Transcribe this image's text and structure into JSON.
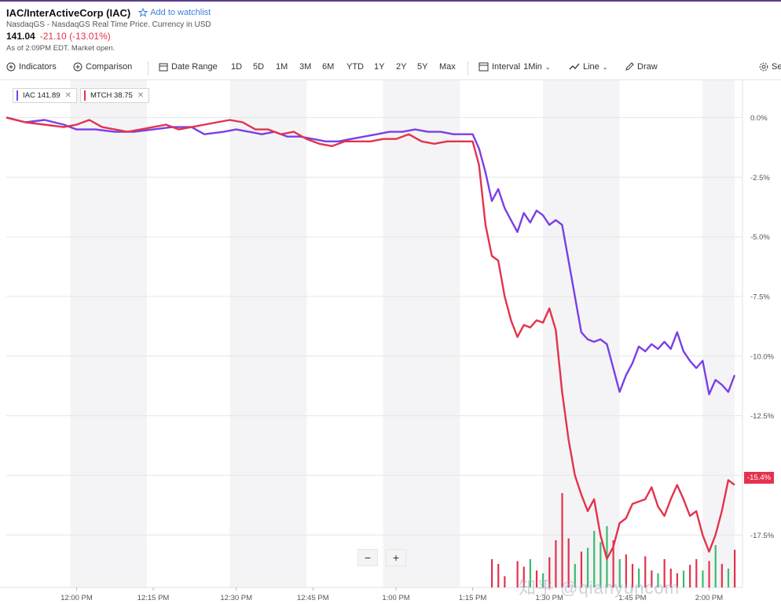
{
  "header": {
    "title": "IAC/InterActiveCorp (IAC)",
    "watchlist_label": "Add to watchlist",
    "source": "NasdaqGS - NasdaqGS Real Time Price. Currency in USD",
    "price": "141.04",
    "change": "-21.10 (-13.01%)",
    "as_of": "As of 2:09PM EDT. Market open."
  },
  "toolbar": {
    "indicators": "Indicators",
    "comparison": "Comparison",
    "date_range": "Date Range",
    "ranges": [
      "1D",
      "5D",
      "1M",
      "3M",
      "6M",
      "YTD",
      "1Y",
      "2Y",
      "5Y",
      "Max"
    ],
    "interval_label": "Interval",
    "interval_value": "1Min",
    "chart_type": "Line",
    "draw": "Draw",
    "settings": "Se"
  },
  "chips": [
    {
      "label": "IAC 141.89",
      "color": "#7b3fe4"
    },
    {
      "label": "MTCH 38.75",
      "color": "#e3334d"
    }
  ],
  "zoom": {
    "minus": "−",
    "plus": "+"
  },
  "last_value_flag": "-15.4%",
  "watermark": "知乎 @qianyuncom",
  "chart_data": {
    "type": "line",
    "y_unit": "%",
    "ylim": [
      -19.7,
      1.3
    ],
    "yticks": [
      0,
      -2.5,
      -5,
      -7.5,
      -10,
      -12.5,
      -15,
      -17.5
    ],
    "ytick_labels": [
      "0.0%",
      "-2.5%",
      "-5.0%",
      "-7.5%",
      "-10.0%",
      "-12.5%",
      "-15.0%",
      "-17.5%"
    ],
    "xlim": [
      0,
      114
    ],
    "xticks": [
      11,
      23,
      36,
      48,
      61,
      73,
      85,
      98,
      110
    ],
    "xtick_labels": [
      "12:00 PM",
      "12:15 PM",
      "12:30 PM",
      "12:45 PM",
      "1:00 PM",
      "1:15 PM",
      "1:30 PM",
      "1:45 PM",
      "2:00 PM"
    ],
    "x_note": "minutes after 11:51 AM",
    "shaded_bands": [
      [
        10,
        22
      ],
      [
        35,
        47
      ],
      [
        59,
        71
      ],
      [
        84,
        96
      ],
      [
        109,
        114
      ]
    ],
    "series": [
      {
        "name": "IAC",
        "color": "#7b3fe4",
        "points": [
          [
            0,
            0
          ],
          [
            3,
            -0.2
          ],
          [
            6,
            -0.1
          ],
          [
            9,
            -0.3
          ],
          [
            11,
            -0.5
          ],
          [
            14,
            -0.5
          ],
          [
            17,
            -0.6
          ],
          [
            20,
            -0.6
          ],
          [
            23,
            -0.5
          ],
          [
            26,
            -0.4
          ],
          [
            29,
            -0.4
          ],
          [
            31,
            -0.7
          ],
          [
            34,
            -0.6
          ],
          [
            36,
            -0.5
          ],
          [
            38,
            -0.6
          ],
          [
            40,
            -0.7
          ],
          [
            42,
            -0.6
          ],
          [
            44,
            -0.8
          ],
          [
            46,
            -0.8
          ],
          [
            48,
            -0.9
          ],
          [
            50,
            -1.0
          ],
          [
            52,
            -1.0
          ],
          [
            54,
            -0.9
          ],
          [
            56,
            -0.8
          ],
          [
            58,
            -0.7
          ],
          [
            60,
            -0.6
          ],
          [
            62,
            -0.6
          ],
          [
            64,
            -0.5
          ],
          [
            66,
            -0.6
          ],
          [
            68,
            -0.6
          ],
          [
            70,
            -0.7
          ],
          [
            72,
            -0.7
          ],
          [
            73,
            -0.7
          ],
          [
            74,
            -1.3
          ],
          [
            75,
            -2.3
          ],
          [
            76,
            -3.5
          ],
          [
            77,
            -3.0
          ],
          [
            78,
            -3.8
          ],
          [
            79,
            -4.3
          ],
          [
            80,
            -4.8
          ],
          [
            81,
            -4.0
          ],
          [
            82,
            -4.4
          ],
          [
            83,
            -3.9
          ],
          [
            84,
            -4.1
          ],
          [
            85,
            -4.5
          ],
          [
            86,
            -4.3
          ],
          [
            87,
            -4.5
          ],
          [
            88,
            -6.0
          ],
          [
            89,
            -7.5
          ],
          [
            90,
            -9.0
          ],
          [
            91,
            -9.3
          ],
          [
            92,
            -9.4
          ],
          [
            93,
            -9.3
          ],
          [
            94,
            -9.5
          ],
          [
            95,
            -10.5
          ],
          [
            96,
            -11.5
          ],
          [
            97,
            -10.8
          ],
          [
            98,
            -10.3
          ],
          [
            99,
            -9.6
          ],
          [
            100,
            -9.8
          ],
          [
            101,
            -9.5
          ],
          [
            102,
            -9.7
          ],
          [
            103,
            -9.4
          ],
          [
            104,
            -9.7
          ],
          [
            105,
            -9.0
          ],
          [
            106,
            -9.8
          ],
          [
            107,
            -10.2
          ],
          [
            108,
            -10.5
          ],
          [
            109,
            -10.2
          ],
          [
            110,
            -11.6
          ],
          [
            111,
            -11.0
          ],
          [
            112,
            -11.2
          ],
          [
            113,
            -11.5
          ],
          [
            114,
            -10.8
          ]
        ]
      },
      {
        "name": "MTCH",
        "color": "#e3334d",
        "points": [
          [
            0,
            0
          ],
          [
            3,
            -0.2
          ],
          [
            6,
            -0.3
          ],
          [
            9,
            -0.4
          ],
          [
            11,
            -0.3
          ],
          [
            13,
            -0.1
          ],
          [
            15,
            -0.4
          ],
          [
            17,
            -0.5
          ],
          [
            19,
            -0.6
          ],
          [
            21,
            -0.5
          ],
          [
            23,
            -0.4
          ],
          [
            25,
            -0.3
          ],
          [
            27,
            -0.5
          ],
          [
            29,
            -0.4
          ],
          [
            31,
            -0.3
          ],
          [
            33,
            -0.2
          ],
          [
            35,
            -0.1
          ],
          [
            37,
            -0.2
          ],
          [
            39,
            -0.5
          ],
          [
            41,
            -0.5
          ],
          [
            43,
            -0.7
          ],
          [
            45,
            -0.6
          ],
          [
            47,
            -0.9
          ],
          [
            49,
            -1.1
          ],
          [
            51,
            -1.2
          ],
          [
            53,
            -1.0
          ],
          [
            55,
            -1.0
          ],
          [
            57,
            -1.0
          ],
          [
            59,
            -0.9
          ],
          [
            61,
            -0.9
          ],
          [
            63,
            -0.7
          ],
          [
            65,
            -1.0
          ],
          [
            67,
            -1.1
          ],
          [
            69,
            -1.0
          ],
          [
            71,
            -1.0
          ],
          [
            73,
            -1.0
          ],
          [
            74,
            -2.0
          ],
          [
            75,
            -4.5
          ],
          [
            76,
            -5.8
          ],
          [
            77,
            -6.0
          ],
          [
            78,
            -7.5
          ],
          [
            79,
            -8.5
          ],
          [
            80,
            -9.2
          ],
          [
            81,
            -8.7
          ],
          [
            82,
            -8.8
          ],
          [
            83,
            -8.5
          ],
          [
            84,
            -8.6
          ],
          [
            85,
            -8.0
          ],
          [
            86,
            -8.9
          ],
          [
            87,
            -11.5
          ],
          [
            88,
            -13.5
          ],
          [
            89,
            -15.0
          ],
          [
            90,
            -15.8
          ],
          [
            91,
            -16.5
          ],
          [
            92,
            -16.0
          ],
          [
            93,
            -17.5
          ],
          [
            94,
            -18.5
          ],
          [
            95,
            -18.0
          ],
          [
            96,
            -17.0
          ],
          [
            97,
            -16.8
          ],
          [
            98,
            -16.2
          ],
          [
            99,
            -16.1
          ],
          [
            100,
            -16.0
          ],
          [
            101,
            -15.5
          ],
          [
            102,
            -16.3
          ],
          [
            103,
            -16.7
          ],
          [
            104,
            -16.0
          ],
          [
            105,
            -15.4
          ],
          [
            106,
            -16.0
          ],
          [
            107,
            -16.7
          ],
          [
            108,
            -16.5
          ],
          [
            109,
            -17.5
          ],
          [
            110,
            -18.2
          ],
          [
            111,
            -17.5
          ],
          [
            112,
            -16.5
          ],
          [
            113,
            -15.2
          ],
          [
            114,
            -15.4
          ]
        ]
      }
    ],
    "volume": {
      "max": 100,
      "bars": [
        {
          "x": 76,
          "v": 30,
          "color": "#e3334d"
        },
        {
          "x": 77,
          "v": 25,
          "color": "#e3334d"
        },
        {
          "x": 78,
          "v": 12,
          "color": "#e3334d"
        },
        {
          "x": 80,
          "v": 28,
          "color": "#e3334d"
        },
        {
          "x": 81,
          "v": 22,
          "color": "#e3334d"
        },
        {
          "x": 82,
          "v": 30,
          "color": "#3dbb6f"
        },
        {
          "x": 83,
          "v": 18,
          "color": "#e3334d"
        },
        {
          "x": 84,
          "v": 15,
          "color": "#3dbb6f"
        },
        {
          "x": 85,
          "v": 32,
          "color": "#e3334d"
        },
        {
          "x": 86,
          "v": 50,
          "color": "#e3334d"
        },
        {
          "x": 87,
          "v": 100,
          "color": "#e3334d"
        },
        {
          "x": 88,
          "v": 52,
          "color": "#e3334d"
        },
        {
          "x": 89,
          "v": 25,
          "color": "#3dbb6f"
        },
        {
          "x": 90,
          "v": 38,
          "color": "#e3334d"
        },
        {
          "x": 91,
          "v": 42,
          "color": "#3dbb6f"
        },
        {
          "x": 92,
          "v": 60,
          "color": "#3dbb6f"
        },
        {
          "x": 93,
          "v": 48,
          "color": "#3dbb6f"
        },
        {
          "x": 94,
          "v": 65,
          "color": "#3dbb6f"
        },
        {
          "x": 95,
          "v": 50,
          "color": "#e3334d"
        },
        {
          "x": 96,
          "v": 30,
          "color": "#3dbb6f"
        },
        {
          "x": 97,
          "v": 35,
          "color": "#e3334d"
        },
        {
          "x": 98,
          "v": 25,
          "color": "#e3334d"
        },
        {
          "x": 99,
          "v": 20,
          "color": "#3dbb6f"
        },
        {
          "x": 100,
          "v": 33,
          "color": "#e3334d"
        },
        {
          "x": 101,
          "v": 18,
          "color": "#e3334d"
        },
        {
          "x": 102,
          "v": 15,
          "color": "#3dbb6f"
        },
        {
          "x": 103,
          "v": 30,
          "color": "#e3334d"
        },
        {
          "x": 104,
          "v": 20,
          "color": "#e3334d"
        },
        {
          "x": 105,
          "v": 15,
          "color": "#e3334d"
        },
        {
          "x": 106,
          "v": 18,
          "color": "#3dbb6f"
        },
        {
          "x": 107,
          "v": 24,
          "color": "#e3334d"
        },
        {
          "x": 108,
          "v": 30,
          "color": "#e3334d"
        },
        {
          "x": 109,
          "v": 18,
          "color": "#3dbb6f"
        },
        {
          "x": 110,
          "v": 28,
          "color": "#e3334d"
        },
        {
          "x": 111,
          "v": 45,
          "color": "#3dbb6f"
        },
        {
          "x": 112,
          "v": 25,
          "color": "#e3334d"
        },
        {
          "x": 113,
          "v": 20,
          "color": "#3dbb6f"
        },
        {
          "x": 114,
          "v": 40,
          "color": "#e3334d"
        }
      ]
    }
  }
}
